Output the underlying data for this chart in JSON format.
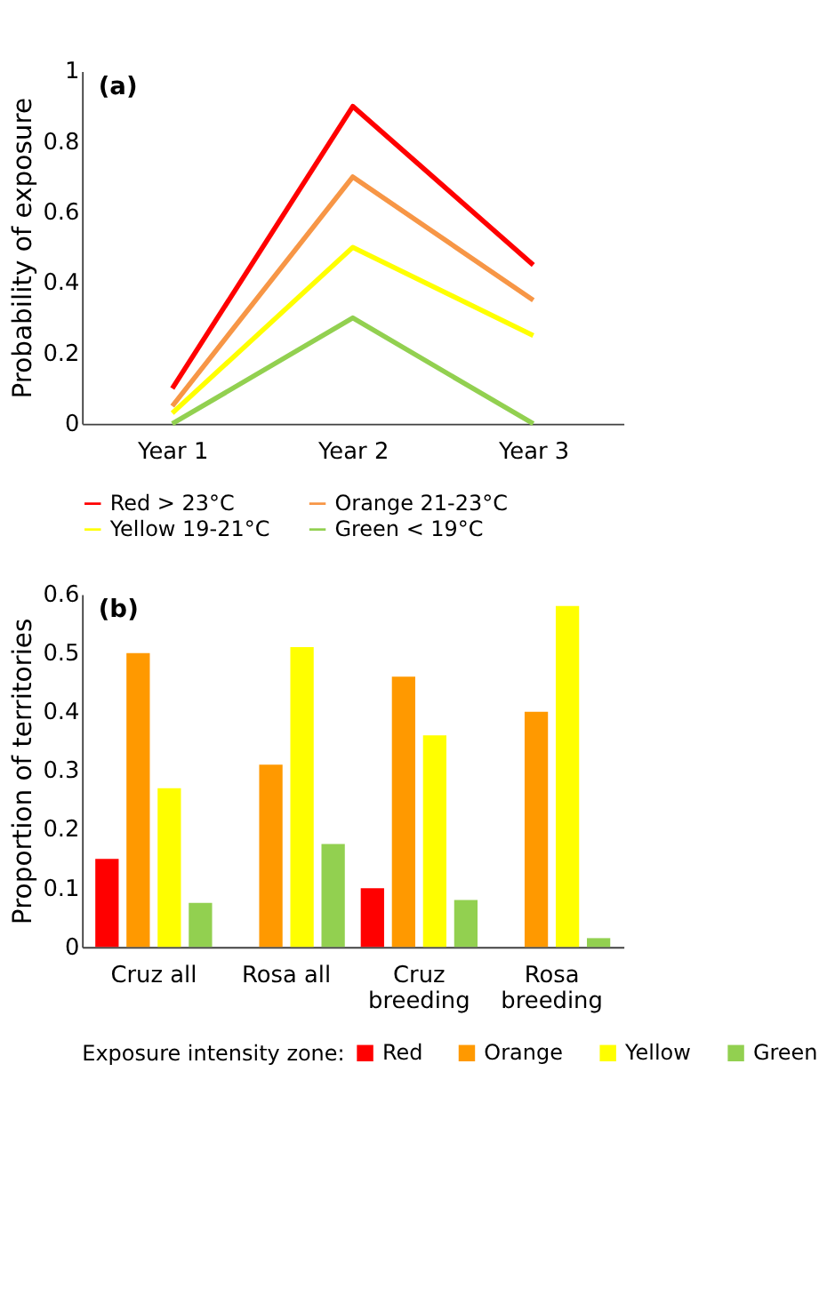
{
  "chart_data": [
    {
      "type": "line",
      "title": "(a)",
      "ylabel": "Probability of exposure",
      "categories": [
        "Year 1",
        "Year 2",
        "Year 3"
      ],
      "series": [
        {
          "name": "Red > 23°C",
          "color": "#ff0000",
          "values": [
            0.1,
            0.9,
            0.45
          ]
        },
        {
          "name": "Orange 21-23°C",
          "color": "#f79646",
          "values": [
            0.05,
            0.7,
            0.35
          ]
        },
        {
          "name": "Yellow 19-21°C",
          "color": "#ffff00",
          "values": [
            0.03,
            0.5,
            0.25
          ]
        },
        {
          "name": "Green < 19°C",
          "color": "#92d050",
          "values": [
            0,
            0.3,
            0
          ]
        }
      ],
      "ylim": [
        0,
        1
      ],
      "yticks": [
        0,
        0.2,
        0.4,
        0.6,
        0.8,
        1
      ],
      "grid": false,
      "legend": "bottom",
      "marker": "none",
      "line_style": "solid"
    },
    {
      "type": "bar",
      "title": "(b)",
      "ylabel": "Proportion of territories",
      "legend_title": "Exposure intensity zone:",
      "categories": [
        "Cruz all",
        "Rosa all",
        "Cruz breeding",
        "Rosa breeding"
      ],
      "series": [
        {
          "name": "Red",
          "color": "#ff0000",
          "values": [
            0.15,
            null,
            0.1,
            null
          ]
        },
        {
          "name": "Orange",
          "color": "#ff9900",
          "values": [
            0.5,
            0.31,
            0.46,
            0.4
          ]
        },
        {
          "name": "Yellow",
          "color": "#ffff00",
          "values": [
            0.27,
            0.51,
            0.36,
            0.58
          ]
        },
        {
          "name": "Green",
          "color": "#92d050",
          "values": [
            0.075,
            0.175,
            0.08,
            0.015
          ]
        }
      ],
      "ylim": [
        0,
        0.6
      ],
      "yticks": [
        0,
        0.1,
        0.2,
        0.3,
        0.4,
        0.5,
        0.6
      ],
      "grid": false,
      "legend": "bottom"
    }
  ]
}
